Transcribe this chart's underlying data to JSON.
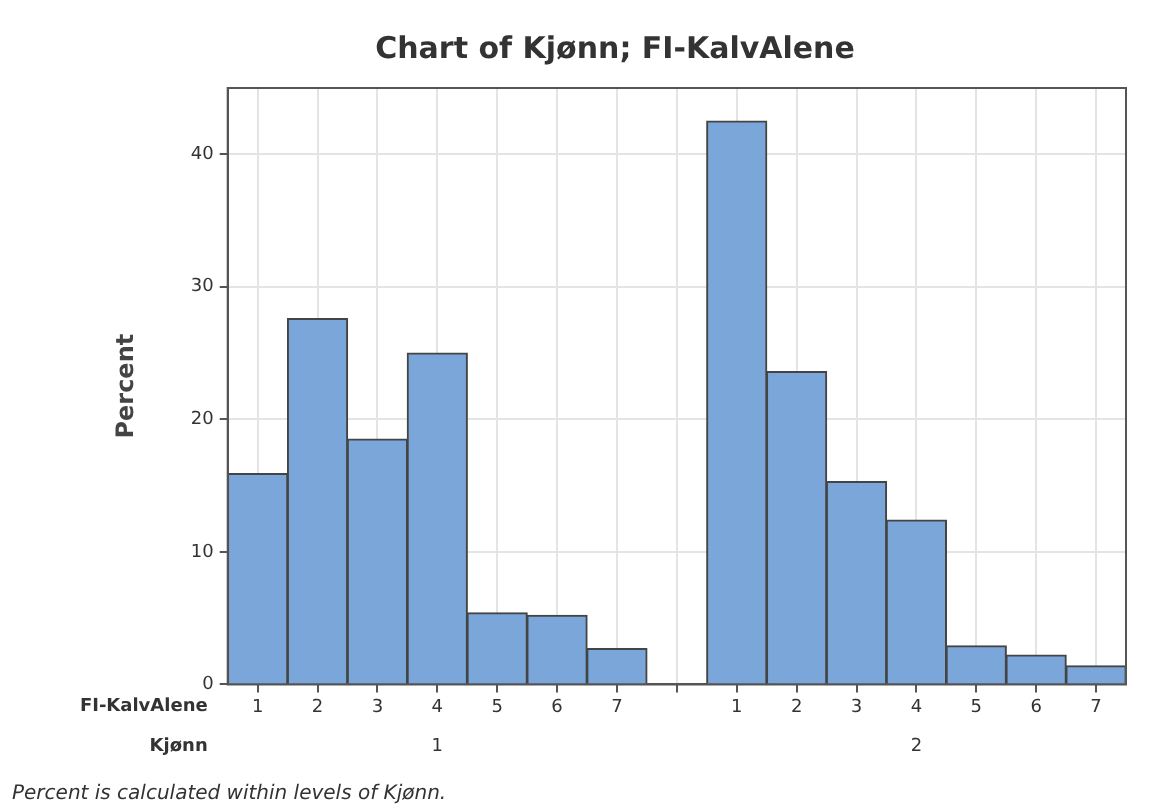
{
  "chart_data": {
    "type": "bar",
    "title": "Chart of Kjønn; FI-KalvAlene",
    "ylabel": "Percent",
    "xlabel": "FI-KalvAlene",
    "categories": [
      "1",
      "2",
      "3",
      "4",
      "5",
      "6",
      "7",
      null,
      "1",
      "2",
      "3",
      "4",
      "5",
      "6",
      "7"
    ],
    "values": [
      15.9,
      27.6,
      18.5,
      25.0,
      5.4,
      5.2,
      2.7,
      null,
      42.5,
      23.6,
      15.3,
      12.4,
      2.9,
      2.2,
      1.4
    ],
    "color": "#7ba6d9",
    "annotations": [
      "Kjønn",
      "1",
      "2",
      "Percent is calculated within levels of Kjønn."
    ],
    "ylim": [
      0,
      45
    ],
    "yticks": [
      0,
      10,
      20,
      30,
      40
    ],
    "grid": true,
    "legend": false
  }
}
